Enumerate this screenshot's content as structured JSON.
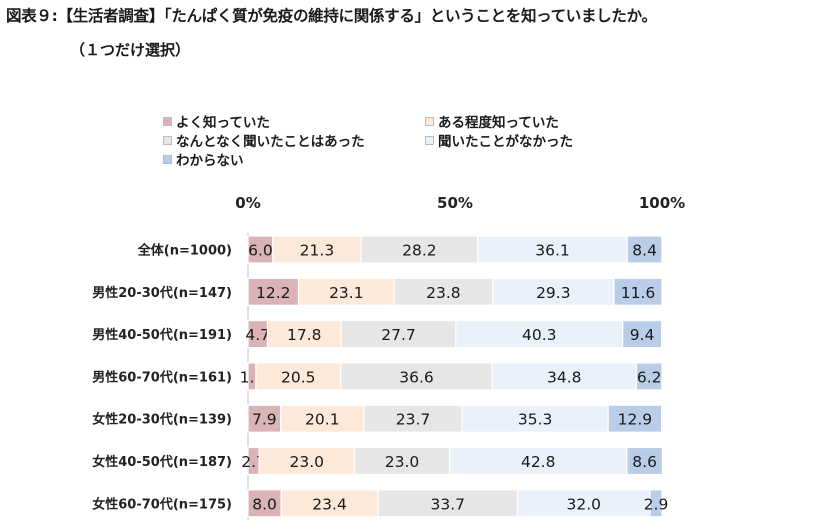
{
  "title": "図表９:【生活者調査】「たんぱく質が免疫の維持に関係する」ということを知っていましたか。",
  "subtitle": "（１つだけ選択）",
  "colors": [
    "#d9b3b6",
    "#fde9d9",
    "#e6e6e6",
    "#eaf1fb",
    "#b9cde9"
  ],
  "chart_data": {
    "type": "bar",
    "orientation": "horizontal",
    "stacked": true,
    "percent": true,
    "xlim": [
      0,
      100
    ],
    "ticks": [
      "0%",
      "50%",
      "100%"
    ],
    "legend_position": "top",
    "categories": [
      "全体(n=1000)",
      "男性20-30代(n=147)",
      "男性40-50代(n=191)",
      "男性60-70代(n=161)",
      "女性20-30代(n=139)",
      "女性40-50代(n=187)",
      "女性60-70代(n=175)"
    ],
    "series": [
      {
        "name": "よく知っていた",
        "values": [
          6.0,
          12.2,
          4.7,
          1.9,
          7.9,
          2.7,
          8.0
        ]
      },
      {
        "name": "ある程度知っていた",
        "values": [
          21.3,
          23.1,
          17.8,
          20.5,
          20.1,
          23.0,
          23.4
        ]
      },
      {
        "name": "なんとなく聞いたことはあった",
        "values": [
          28.2,
          23.8,
          27.7,
          36.6,
          23.7,
          23.0,
          33.7
        ]
      },
      {
        "name": "聞いたことがなかった",
        "values": [
          36.1,
          29.3,
          40.3,
          34.8,
          35.3,
          42.8,
          32.0
        ]
      },
      {
        "name": "わからない",
        "values": [
          8.4,
          11.6,
          9.4,
          6.2,
          12.9,
          8.6,
          2.9
        ]
      }
    ]
  }
}
